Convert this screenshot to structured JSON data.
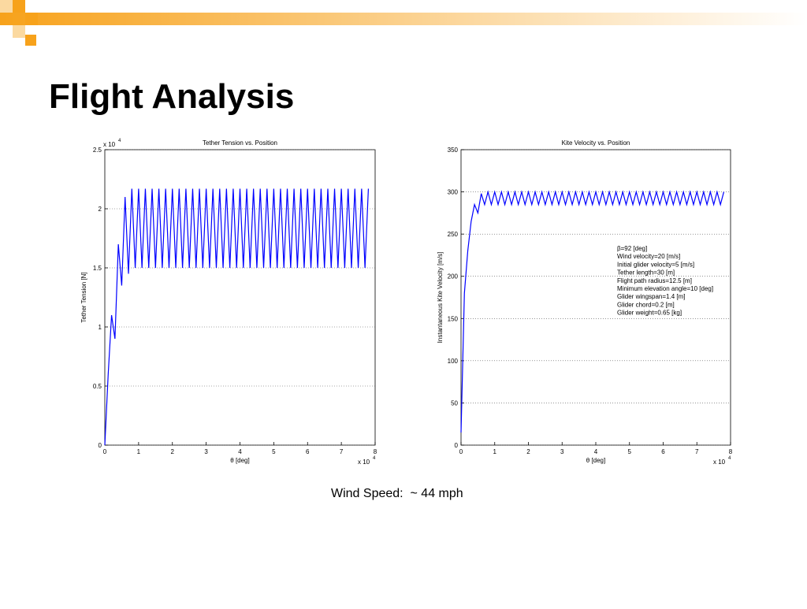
{
  "title": "Flight Analysis",
  "caption": "Wind Speed:  ~ 44 mph",
  "chart_data": [
    {
      "type": "line",
      "title": "Tether Tension vs. Position",
      "x_label": "θ [deg]",
      "y_label": "Tether Tension [N]",
      "x_scale_label": "x 10",
      "x_scale_exponent": "4",
      "y_scale_label": "x 10",
      "y_scale_exponent": "4",
      "xlim": [
        0,
        8
      ],
      "xticks": [
        0,
        1,
        2,
        3,
        4,
        5,
        6,
        7,
        8
      ],
      "ylim": [
        0,
        2.5
      ],
      "yticks": [
        0,
        0.5,
        1,
        1.5,
        2,
        2.5
      ],
      "grid": true,
      "series": [
        {
          "color": "#0000ff",
          "x": [
            0,
            0.1,
            0.2,
            0.3,
            0.4,
            0.5,
            0.6,
            0.7,
            0.8,
            0.9,
            1,
            1.1,
            1.2,
            1.3,
            1.4,
            1.5,
            1.6,
            1.7,
            1.8,
            1.9,
            2,
            2.1,
            2.2,
            2.3,
            2.4,
            2.5,
            2.6,
            2.7,
            2.8,
            2.9,
            3,
            3.1,
            3.2,
            3.3,
            3.4,
            3.5,
            3.6,
            3.7,
            3.8,
            3.9,
            4,
            4.1,
            4.2,
            4.3,
            4.4,
            4.5,
            4.6,
            4.7,
            4.8,
            4.9,
            5,
            5.1,
            5.2,
            5.3,
            5.4,
            5.5,
            5.6,
            5.7,
            5.8,
            5.9,
            6,
            6.1,
            6.2,
            6.3,
            6.4,
            6.5,
            6.6,
            6.7,
            6.8,
            6.9,
            7,
            7.1,
            7.2,
            7.3,
            7.4,
            7.5,
            7.6,
            7.7,
            7.8
          ],
          "values": [
            0,
            0.6,
            1.1,
            0.9,
            1.7,
            1.35,
            2.1,
            1.45,
            2.17,
            1.5,
            2.17,
            1.5,
            2.17,
            1.5,
            2.17,
            1.5,
            2.17,
            1.5,
            2.17,
            1.5,
            2.17,
            1.5,
            2.17,
            1.5,
            2.17,
            1.5,
            2.17,
            1.5,
            2.17,
            1.5,
            2.17,
            1.5,
            2.17,
            1.5,
            2.17,
            1.5,
            2.17,
            1.5,
            2.17,
            1.5,
            2.17,
            1.5,
            2.17,
            1.5,
            2.17,
            1.5,
            2.17,
            1.5,
            2.17,
            1.5,
            2.17,
            1.5,
            2.17,
            1.5,
            2.17,
            1.5,
            2.17,
            1.5,
            2.17,
            1.5,
            2.17,
            1.5,
            2.17,
            1.5,
            2.17,
            1.5,
            2.17,
            1.5,
            2.17,
            1.5,
            2.17,
            1.5,
            2.17,
            1.5,
            2.17,
            1.5,
            2.17,
            1.5,
            2.17
          ]
        }
      ]
    },
    {
      "type": "line",
      "title": "Kite Velocity vs. Position",
      "x_label": "θ [deg]",
      "y_label": "Instantaneous Kite Velocity [m/s]",
      "x_scale_label": "x 10",
      "x_scale_exponent": "4",
      "xlim": [
        0,
        8
      ],
      "xticks": [
        0,
        1,
        2,
        3,
        4,
        5,
        6,
        7,
        8
      ],
      "ylim": [
        0,
        350
      ],
      "yticks": [
        0,
        50,
        100,
        150,
        200,
        250,
        300,
        350
      ],
      "grid": true,
      "annotations": [
        "β=92 [deg]",
        "Wind velocity=20 [m/s]",
        "Initial glider velocity=5 [m/s]",
        "Tether length=30 [m]",
        "Flight path radius=12.5 [m]",
        "Minimum elevation angle=10 [deg]",
        "Glider wingspan=1.4 [m]",
        "Glider chord=0.2 [m]",
        "Glider weight=0.65 [kg]"
      ],
      "series": [
        {
          "color": "#0000ff",
          "x": [
            0,
            0.1,
            0.2,
            0.3,
            0.4,
            0.5,
            0.6,
            0.7,
            0.8,
            0.9,
            1,
            1.1,
            1.2,
            1.3,
            1.4,
            1.5,
            1.6,
            1.7,
            1.8,
            1.9,
            2,
            2.1,
            2.2,
            2.3,
            2.4,
            2.5,
            2.6,
            2.7,
            2.8,
            2.9,
            3,
            3.1,
            3.2,
            3.3,
            3.4,
            3.5,
            3.6,
            3.7,
            3.8,
            3.9,
            4,
            4.1,
            4.2,
            4.3,
            4.4,
            4.5,
            4.6,
            4.7,
            4.8,
            4.9,
            5,
            5.1,
            5.2,
            5.3,
            5.4,
            5.5,
            5.6,
            5.7,
            5.8,
            5.9,
            6,
            6.1,
            6.2,
            6.3,
            6.4,
            6.5,
            6.6,
            6.7,
            6.8,
            6.9,
            7,
            7.1,
            7.2,
            7.3,
            7.4,
            7.5,
            7.6,
            7.7,
            7.8
          ],
          "values": [
            15,
            180,
            230,
            265,
            285,
            275,
            298,
            285,
            300,
            285,
            300,
            285,
            300,
            285,
            300,
            285,
            300,
            285,
            300,
            285,
            300,
            285,
            300,
            285,
            300,
            285,
            300,
            285,
            300,
            285,
            300,
            285,
            300,
            285,
            300,
            285,
            300,
            285,
            300,
            285,
            300,
            285,
            300,
            285,
            300,
            285,
            300,
            285,
            300,
            285,
            300,
            285,
            300,
            285,
            300,
            285,
            300,
            285,
            300,
            285,
            300,
            285,
            300,
            285,
            300,
            285,
            300,
            285,
            300,
            285,
            300,
            285,
            300,
            285,
            300,
            285,
            300,
            285,
            300
          ]
        }
      ]
    }
  ]
}
